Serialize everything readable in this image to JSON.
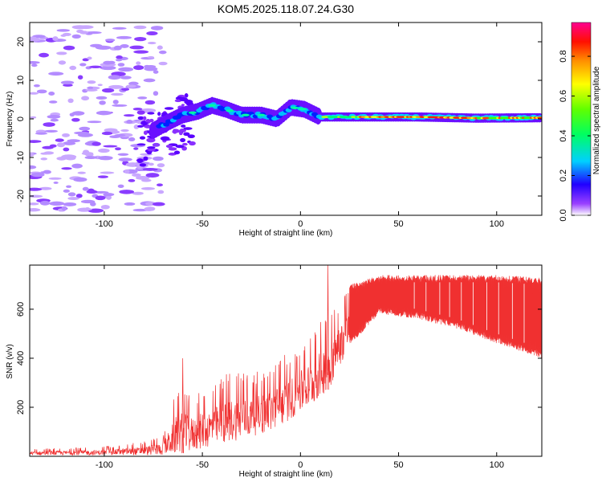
{
  "title": "KOM5.2025.118.07.24.G30",
  "chart_data": [
    {
      "type": "heatmap",
      "xlabel": "Height of straight line (km)",
      "ylabel": "Frequency (Hz)",
      "xlim": [
        -138,
        123
      ],
      "ylim": [
        -25,
        25
      ],
      "xticks": [
        -100,
        -50,
        0,
        50,
        100
      ],
      "yticks": [
        20,
        10,
        0,
        -10,
        -20
      ],
      "colorbar": {
        "label": "Normalized spectral amplitude",
        "range": [
          0,
          0.97
        ],
        "ticks": [
          0.0,
          0.2,
          0.4,
          0.6,
          0.8
        ],
        "colors": [
          "#ffffff",
          "#7a00ff",
          "#0000ff",
          "#00c8ff",
          "#00ff80",
          "#40ff00",
          "#ffff00",
          "#ff8000",
          "#ff0000",
          "#ff0080"
        ]
      },
      "ridge": [
        {
          "x": -75,
          "y": -3.0
        },
        {
          "x": -68,
          "y": -1.0
        },
        {
          "x": -60,
          "y": 1.0
        },
        {
          "x": -52,
          "y": 2.0
        },
        {
          "x": -45,
          "y": 3.5
        },
        {
          "x": -38,
          "y": 2.5
        },
        {
          "x": -30,
          "y": 1.0
        },
        {
          "x": -20,
          "y": 1.0
        },
        {
          "x": -12,
          "y": 0.0
        },
        {
          "x": -5,
          "y": 3.0
        },
        {
          "x": 2,
          "y": 2.5
        },
        {
          "x": 10,
          "y": 0.5
        },
        {
          "x": 30,
          "y": 0.5
        },
        {
          "x": 60,
          "y": 0.5
        },
        {
          "x": 90,
          "y": 0.2
        },
        {
          "x": 123,
          "y": 0.3
        }
      ]
    },
    {
      "type": "line",
      "xlabel": "Height of straight line (km)",
      "ylabel": "SNR (v/v)",
      "xlim": [
        -138,
        123
      ],
      "ylim": [
        0,
        780
      ],
      "xticks": [
        -100,
        -50,
        0,
        50,
        100
      ],
      "yticks": [
        200,
        400,
        600
      ],
      "color": "#f03030",
      "envelope": [
        {
          "x": -138,
          "lo": 5,
          "hi": 30
        },
        {
          "x": -100,
          "lo": 5,
          "hi": 40
        },
        {
          "x": -80,
          "lo": 5,
          "hi": 60
        },
        {
          "x": -70,
          "lo": 5,
          "hi": 90
        },
        {
          "x": -62,
          "lo": 10,
          "hi": 300
        },
        {
          "x": -55,
          "lo": 20,
          "hi": 250
        },
        {
          "x": -45,
          "lo": 40,
          "hi": 300
        },
        {
          "x": -35,
          "lo": 60,
          "hi": 350
        },
        {
          "x": -25,
          "lo": 80,
          "hi": 340
        },
        {
          "x": -15,
          "lo": 100,
          "hi": 380
        },
        {
          "x": -5,
          "lo": 150,
          "hi": 430
        },
        {
          "x": 5,
          "lo": 200,
          "hi": 500
        },
        {
          "x": 15,
          "lo": 280,
          "hi": 600
        },
        {
          "x": 25,
          "lo": 450,
          "hi": 700
        },
        {
          "x": 40,
          "lo": 580,
          "hi": 740
        },
        {
          "x": 60,
          "lo": 560,
          "hi": 740
        },
        {
          "x": 80,
          "lo": 520,
          "hi": 740
        },
        {
          "x": 100,
          "lo": 460,
          "hi": 740
        },
        {
          "x": 123,
          "lo": 400,
          "hi": 730
        }
      ],
      "peaks": [
        {
          "x": -60,
          "y": 400
        },
        {
          "x": 14,
          "y": 780
        }
      ]
    }
  ]
}
